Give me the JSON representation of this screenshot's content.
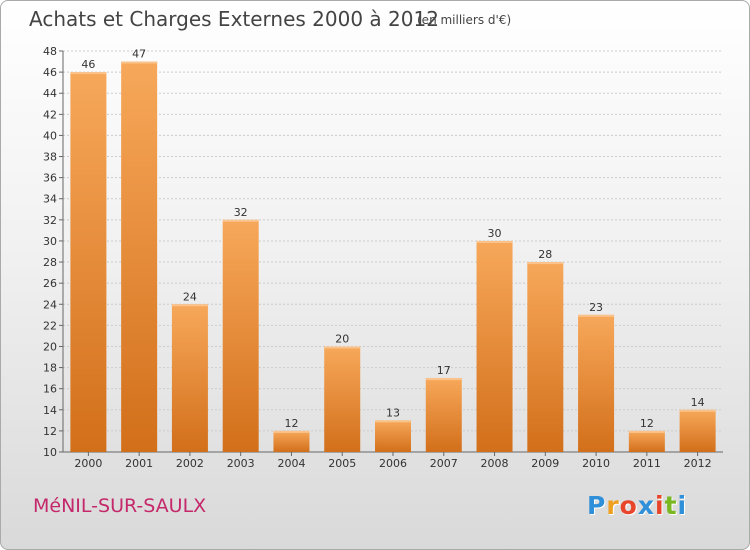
{
  "chart_data": {
    "type": "bar",
    "title": "Achats et Charges Externes 2000 à 2012",
    "subtitle": "(en milliers d'€)",
    "categories": [
      "2000",
      "2001",
      "2002",
      "2003",
      "2004",
      "2005",
      "2006",
      "2007",
      "2008",
      "2009",
      "2010",
      "2011",
      "2012"
    ],
    "values": [
      46,
      47,
      24,
      32,
      12,
      20,
      13,
      17,
      30,
      28,
      23,
      12,
      14
    ],
    "ylim": [
      10,
      48
    ],
    "yticks": [
      10,
      12,
      14,
      16,
      18,
      20,
      22,
      24,
      26,
      28,
      30,
      32,
      34,
      36,
      38,
      40,
      42,
      44,
      46,
      48
    ],
    "grid": true,
    "bar_color": "#f0953e"
  },
  "town": "MéNIL-SUR-SAULX",
  "logo": {
    "letters": [
      "P",
      "r",
      "o",
      "x",
      "i",
      "t",
      "i"
    ],
    "colors": [
      "#2f8fd8",
      "#f0a020",
      "#e8462a",
      "#2f8fd8",
      "#e8462a",
      "#79b820",
      "#2f8fd8"
    ]
  }
}
